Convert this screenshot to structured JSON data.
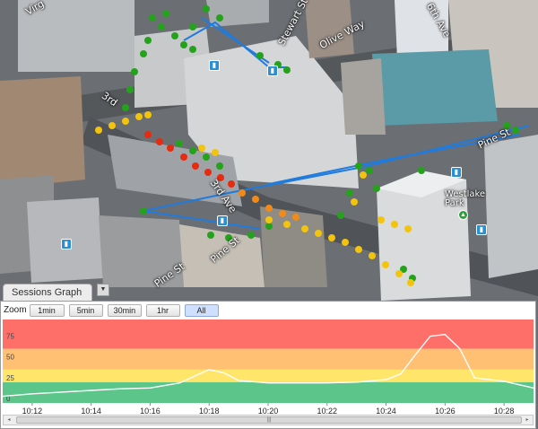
{
  "map": {
    "street_labels": [
      {
        "id": "virginia",
        "text": "Virg"
      },
      {
        "id": "stewart",
        "text": "Stewart St"
      },
      {
        "id": "olive",
        "text": "Olive Way"
      },
      {
        "id": "sixth",
        "text": "6th Ave"
      },
      {
        "id": "third",
        "text": "3rd"
      },
      {
        "id": "pine-a",
        "text": "Pine St"
      },
      {
        "id": "pine-b",
        "text": "Pine St"
      },
      {
        "id": "pine-c",
        "text": "Pine St"
      },
      {
        "id": "third-ave",
        "text": "3rd Ave"
      },
      {
        "id": "westlake",
        "text": "Westlake Park"
      }
    ],
    "transit_icon": "bus-icon",
    "transit_glyph": "▮",
    "park_icon": "tree-icon",
    "park_glyph": "▲"
  },
  "graph": {
    "tab_label": "Sessions Graph",
    "toggle_glyph": "▼",
    "zoom_label": "Zoom",
    "zoom_buttons": [
      "1min",
      "5min",
      "30min",
      "1hr",
      "All"
    ],
    "active_zoom": "All",
    "scroll_left": "◂",
    "scroll_right": "▸",
    "scroll_grip": "|||"
  },
  "chart_data": {
    "type": "line",
    "xlim": [
      "10:11",
      "10:29"
    ],
    "ylim": [
      0,
      100
    ],
    "y_ticks": [
      0,
      25,
      50,
      75
    ],
    "x_tick_labels": [
      "10:12",
      "10:14",
      "10:16",
      "10:18",
      "10:20",
      "10:22",
      "10:24",
      "10:26",
      "10:28"
    ],
    "bands": [
      {
        "from": 0,
        "to": 25,
        "color": "#5cc58a"
      },
      {
        "from": 25,
        "to": 40,
        "color": "#ffe56a"
      },
      {
        "from": 40,
        "to": 65,
        "color": "#ffc073"
      },
      {
        "from": 65,
        "to": 100,
        "color": "#ff6f6a"
      }
    ],
    "line_color": "#ffffff",
    "series": [
      {
        "x": [
          "10:11",
          "10:12",
          "10:13",
          "10:14",
          "10:15",
          "10:16",
          "10:17",
          "10:17.5",
          "10:18",
          "10:18.5",
          "10:19",
          "10:20",
          "10:21",
          "10:22",
          "10:23",
          "10:24",
          "10:24.5",
          "10:25",
          "10:25.5",
          "10:26",
          "10:26.5",
          "10:27",
          "10:28",
          "10:29"
        ],
        "values": [
          8,
          11,
          13,
          15,
          17,
          18,
          24,
          32,
          40,
          36,
          27,
          24,
          24,
          24,
          25,
          28,
          35,
          58,
          80,
          82,
          65,
          30,
          26,
          18
        ]
      }
    ]
  }
}
